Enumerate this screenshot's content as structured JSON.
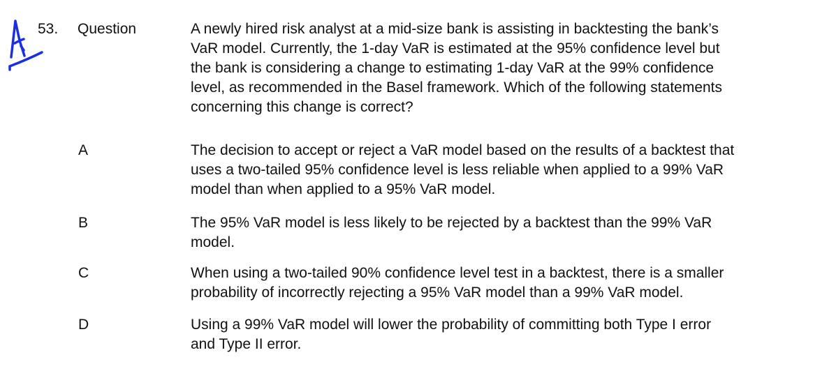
{
  "handwritten_mark": {
    "text": "A",
    "color": "#1a2fe0"
  },
  "question": {
    "number": "53.",
    "label": "Question",
    "lines": [
      "A newly hired risk analyst at a mid-size bank is assisting in backtesting the bank’s",
      "VaR model. Currently, the 1-day VaR is estimated at the 95% confidence level but",
      "the bank is considering a change to estimating 1-day VaR at the 99% confidence",
      "level, as recommended in the Basel framework. Which of the following statements",
      "concerning this change is correct?"
    ]
  },
  "options": [
    {
      "letter": "A",
      "lines": [
        "The decision to accept or reject a VaR model based on the results of a backtest that",
        "uses a two-tailed 95% confidence level is less reliable when applied to a 99% VaR",
        "model than when applied to a 95% VaR model."
      ]
    },
    {
      "letter": "B",
      "lines": [
        "The 95% VaR model is less likely to be rejected by a backtest than the 99% VaR",
        "model."
      ]
    },
    {
      "letter": "C",
      "lines": [
        "When using a two-tailed 90% confidence level test in a backtest, there is a smaller",
        "probability of incorrectly rejecting a 95% VaR model than a 99% VaR model."
      ]
    },
    {
      "letter": "D",
      "lines": [
        "Using a 99% VaR model will lower the probability of committing both Type I error",
        "and Type II error."
      ]
    }
  ]
}
